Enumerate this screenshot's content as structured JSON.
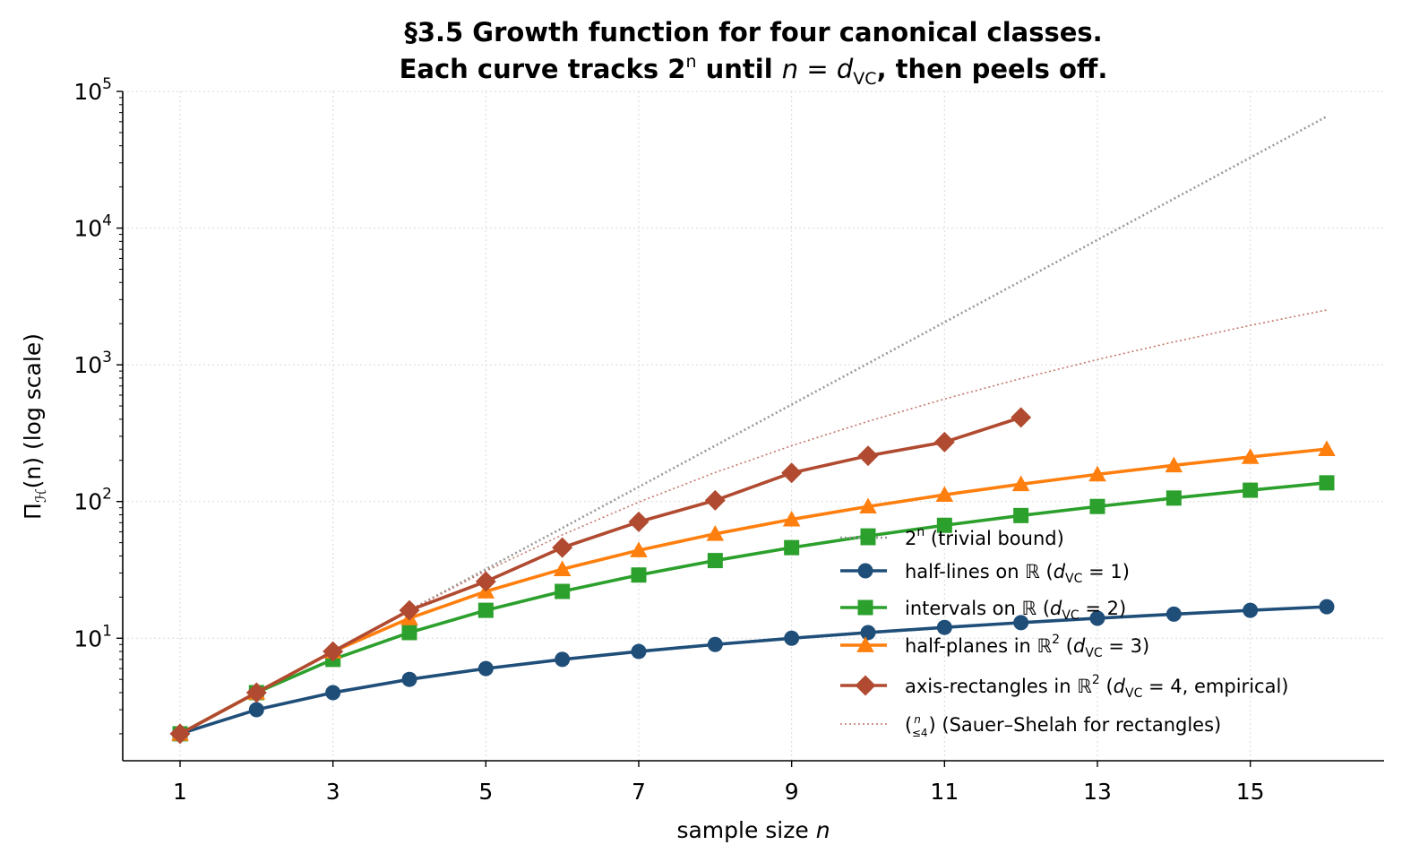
{
  "chart_data": {
    "type": "line",
    "title_line1": "§3.5  Growth function for four canonical classes.",
    "title_line2_prefix": "Each curve tracks 2",
    "title_line2_sup": "n",
    "title_line2_mid": " until ",
    "title_line2_n": "n",
    "title_line2_eq": " = ",
    "title_line2_d": "d",
    "title_line2_sub": "VC",
    "title_line2_suffix": ", then peels off.",
    "xlabel_text": "sample size ",
    "xlabel_var": "n",
    "ylabel_pi": "Π",
    "ylabel_sub": "ℋ",
    "ylabel_rest": "(n)  (log scale)",
    "xlim": [
      0.25,
      16.75
    ],
    "ylim": [
      1.27,
      100000
    ],
    "yscale": "log",
    "grid": true,
    "legend_placement": "lower-right",
    "x_ticks": [
      1,
      3,
      5,
      7,
      9,
      11,
      13,
      15
    ],
    "x_tick_labels": [
      "1",
      "3",
      "5",
      "7",
      "9",
      "11",
      "13",
      "15"
    ],
    "y_ticks": [
      10,
      100,
      1000,
      10000,
      100000
    ],
    "y_tick_base": "10",
    "y_tick_exponents": [
      "1",
      "2",
      "3",
      "4",
      "5"
    ],
    "series": [
      {
        "name": "2ⁿ  (trivial bound)",
        "color": "#999999",
        "style": "dotted",
        "marker": "none",
        "x": [
          1,
          2,
          3,
          4,
          5,
          6,
          7,
          8,
          9,
          10,
          11,
          12,
          13,
          14,
          15,
          16
        ],
        "values": [
          2,
          4,
          8,
          16,
          32,
          64,
          128,
          256,
          512,
          1024,
          2048,
          4096,
          8192,
          16384,
          32768,
          65536
        ]
      },
      {
        "name": "(ⁿ≤4)  (Sauer–Shelah for rectangles)",
        "color": "#c4776a",
        "style": "dotted-thin",
        "marker": "none",
        "x": [
          1,
          2,
          3,
          4,
          5,
          6,
          7,
          8,
          9,
          10,
          11,
          12,
          13,
          14,
          15,
          16
        ],
        "values": [
          2,
          4,
          8,
          16,
          31,
          57,
          99,
          163,
          256,
          386,
          562,
          794,
          1093,
          1471,
          1941,
          2517
        ]
      },
      {
        "name": "half-lines on ℝ  (dVC = 1)",
        "color": "#1f4e79",
        "style": "solid",
        "marker": "circle",
        "x": [
          1,
          2,
          3,
          4,
          5,
          6,
          7,
          8,
          9,
          10,
          11,
          12,
          13,
          14,
          15,
          16
        ],
        "values": [
          2,
          3,
          4,
          5,
          6,
          7,
          8,
          9,
          10,
          11,
          12,
          13,
          14,
          15,
          16,
          17
        ]
      },
      {
        "name": "intervals on ℝ  (dVC = 2)",
        "color": "#2ca02c",
        "style": "solid",
        "marker": "square",
        "x": [
          1,
          2,
          3,
          4,
          5,
          6,
          7,
          8,
          9,
          10,
          11,
          12,
          13,
          14,
          15,
          16
        ],
        "values": [
          2,
          4,
          7,
          11,
          16,
          22,
          29,
          37,
          46,
          56,
          67,
          79,
          92,
          106,
          121,
          137
        ]
      },
      {
        "name": "half-planes in ℝ²  (dVC = 3)",
        "color": "#ff7f0e",
        "style": "solid",
        "marker": "triangle",
        "x": [
          1,
          2,
          3,
          4,
          5,
          6,
          7,
          8,
          9,
          10,
          11,
          12,
          13,
          14,
          15,
          16
        ],
        "values": [
          2,
          4,
          8,
          14,
          22,
          32,
          44,
          58,
          74,
          92,
          112,
          134,
          158,
          184,
          212,
          242
        ]
      },
      {
        "name": "axis-rectangles in ℝ²  (dVC = 4, empirical)",
        "color": "#b04a30",
        "style": "solid",
        "marker": "diamond",
        "x": [
          1,
          2,
          3,
          4,
          5,
          6,
          7,
          8,
          9,
          10,
          11,
          12
        ],
        "values": [
          2,
          4,
          8,
          16,
          26,
          46,
          71,
          102,
          162,
          216,
          272,
          412
        ]
      }
    ],
    "legend": {
      "items": [
        {
          "prefix": "2",
          "sup": "n",
          "rest": "  (trivial bound)"
        },
        {
          "prefix": "half-lines on ℝ  (",
          "d": "d",
          "sub": "VC",
          "rest": " = 1)"
        },
        {
          "prefix": "intervals on ℝ  (",
          "d": "d",
          "sub": "VC",
          "rest": " = 2)"
        },
        {
          "prefix": "half-planes in ℝ",
          "sup": "2",
          "mid": "  (",
          "d": "d",
          "sub": "VC",
          "rest": " = 3)"
        },
        {
          "prefix": "axis-rectangles in ℝ",
          "sup": "2",
          "mid": "  (",
          "d": "d",
          "sub": "VC",
          "rest": " = 4, empirical)"
        },
        {
          "binom_top": "n",
          "binom_bottom": "≤4",
          "rest": "  (Sauer–Shelah for rectangles)"
        }
      ]
    }
  }
}
